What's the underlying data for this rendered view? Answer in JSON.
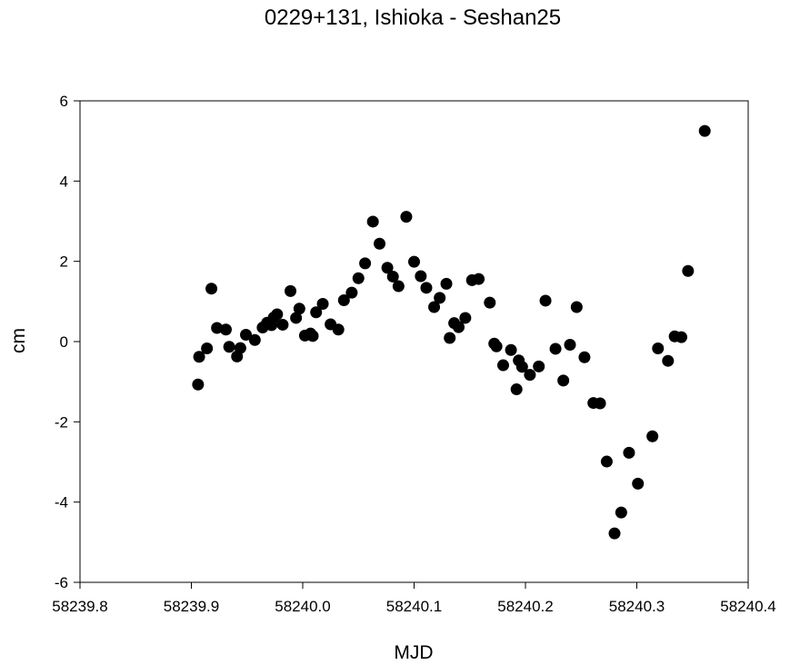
{
  "chart_data": {
    "type": "scatter",
    "title": "0229+131, Ishioka - Seshan25",
    "xlabel": "MJD",
    "ylabel": "cm",
    "xlim": [
      58239.8,
      58240.4
    ],
    "ylim": [
      -6,
      6
    ],
    "x_ticks": [
      "58239.8",
      "58239.9",
      "58240.0",
      "58240.1",
      "58240.2",
      "58240.3",
      "58240.4"
    ],
    "y_ticks": [
      "-6",
      "-4",
      "-2",
      "0",
      "2",
      "4",
      "6"
    ],
    "grid": false,
    "legend": "none",
    "marker_color": "#000000",
    "series": [
      {
        "points": [
          [
            58239.906,
            -1.07
          ],
          [
            58239.907,
            -0.38
          ],
          [
            58239.914,
            -0.17
          ],
          [
            58239.918,
            1.32
          ],
          [
            58239.923,
            0.34
          ],
          [
            58239.931,
            0.3
          ],
          [
            58239.934,
            -0.13
          ],
          [
            58239.941,
            -0.37
          ],
          [
            58239.944,
            -0.16
          ],
          [
            58239.949,
            0.17
          ],
          [
            58239.957,
            0.04
          ],
          [
            58239.964,
            0.35
          ],
          [
            58239.968,
            0.47
          ],
          [
            58239.972,
            0.41
          ],
          [
            58239.974,
            0.6
          ],
          [
            58239.977,
            0.68
          ],
          [
            58239.982,
            0.42
          ],
          [
            58239.989,
            1.26
          ],
          [
            58239.994,
            0.59
          ],
          [
            58239.997,
            0.82
          ],
          [
            58240.002,
            0.15
          ],
          [
            58240.007,
            0.2
          ],
          [
            58240.009,
            0.14
          ],
          [
            58240.012,
            0.73
          ],
          [
            58240.018,
            0.94
          ],
          [
            58240.025,
            0.43
          ],
          [
            58240.032,
            0.3
          ],
          [
            58240.037,
            1.03
          ],
          [
            58240.044,
            1.22
          ],
          [
            58240.05,
            1.58
          ],
          [
            58240.056,
            1.95
          ],
          [
            58240.063,
            2.99
          ],
          [
            58240.069,
            2.44
          ],
          [
            58240.076,
            1.84
          ],
          [
            58240.081,
            1.62
          ],
          [
            58240.086,
            1.38
          ],
          [
            58240.093,
            3.11
          ],
          [
            58240.1,
            1.99
          ],
          [
            58240.106,
            1.63
          ],
          [
            58240.111,
            1.34
          ],
          [
            58240.118,
            0.86
          ],
          [
            58240.123,
            1.09
          ],
          [
            58240.129,
            1.44
          ],
          [
            58240.132,
            0.09
          ],
          [
            58240.136,
            0.46
          ],
          [
            58240.14,
            0.36
          ],
          [
            58240.146,
            0.59
          ],
          [
            58240.152,
            1.53
          ],
          [
            58240.158,
            1.56
          ],
          [
            58240.168,
            0.97
          ],
          [
            58240.172,
            -0.05
          ],
          [
            58240.174,
            -0.12
          ],
          [
            58240.18,
            -0.59
          ],
          [
            58240.187,
            -0.21
          ],
          [
            58240.192,
            -1.19
          ],
          [
            58240.194,
            -0.47
          ],
          [
            58240.197,
            -0.63
          ],
          [
            58240.204,
            -0.83
          ],
          [
            58240.212,
            -0.62
          ],
          [
            58240.218,
            1.02
          ],
          [
            58240.227,
            -0.18
          ],
          [
            58240.234,
            -0.97
          ],
          [
            58240.24,
            -0.08
          ],
          [
            58240.246,
            0.86
          ],
          [
            58240.253,
            -0.39
          ],
          [
            58240.261,
            -1.53
          ],
          [
            58240.267,
            -1.54
          ],
          [
            58240.273,
            -2.99
          ],
          [
            58240.28,
            -4.78
          ],
          [
            58240.286,
            -4.26
          ],
          [
            58240.293,
            -2.77
          ],
          [
            58240.301,
            -3.54
          ],
          [
            58240.314,
            -2.36
          ],
          [
            58240.319,
            -0.17
          ],
          [
            58240.328,
            -0.48
          ],
          [
            58240.334,
            0.13
          ],
          [
            58240.34,
            0.11
          ],
          [
            58240.346,
            1.76
          ],
          [
            58240.361,
            5.25
          ]
        ]
      }
    ]
  }
}
